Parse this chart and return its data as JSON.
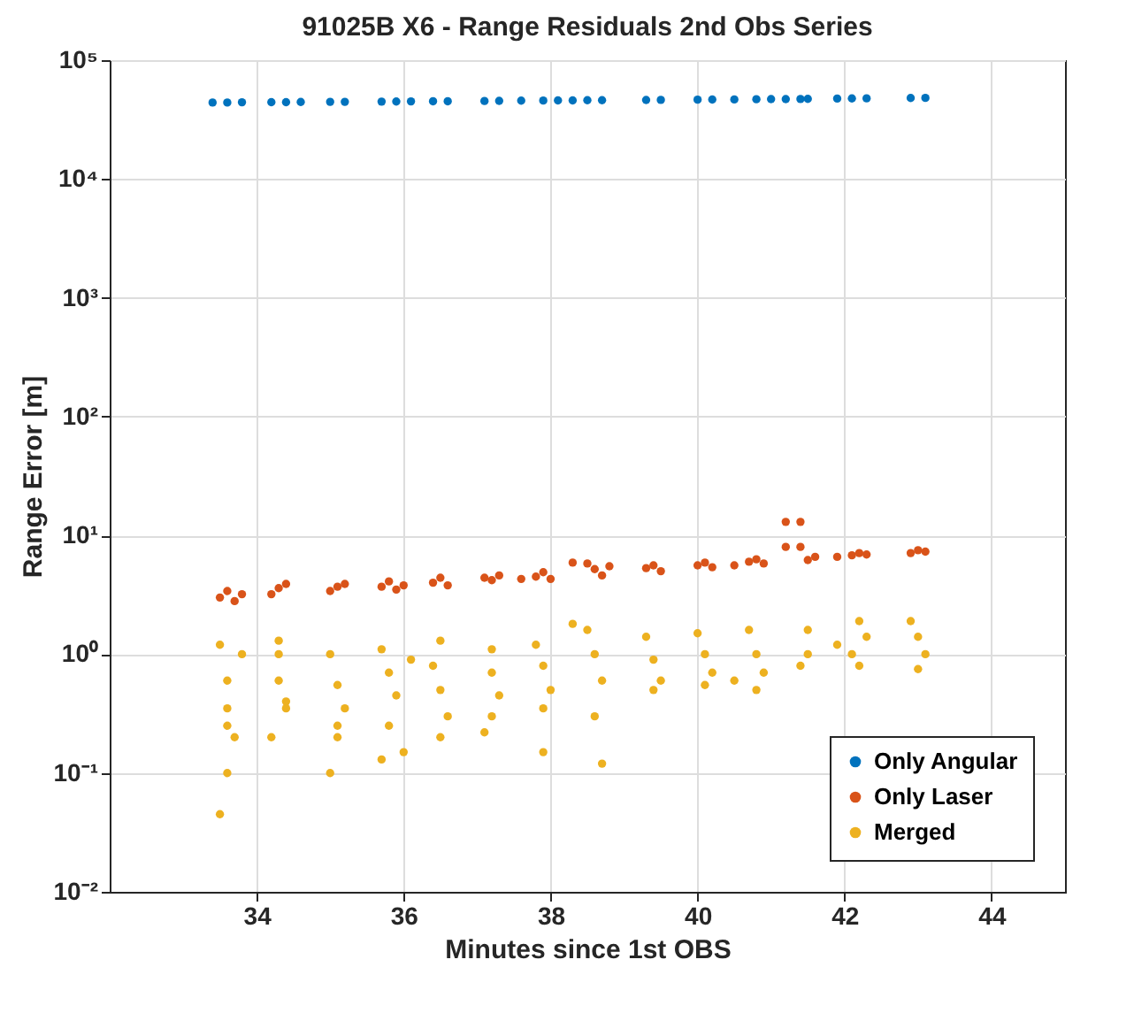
{
  "chart_data": {
    "type": "scatter",
    "title": "91025B X6 - Range Residuals 2nd Obs Series",
    "xlabel": "Minutes since 1st OBS",
    "ylabel": "Range Error [m]",
    "log": "y",
    "grid": true,
    "legend": "bottom right",
    "marker": "circle",
    "xlim": [
      32,
      45
    ],
    "xticks": [
      34,
      36,
      38,
      40,
      42,
      44
    ],
    "ylim": [
      0.01,
      100000
    ],
    "yticks": [
      {
        "value": 0.01,
        "label": "10⁻²"
      },
      {
        "value": 0.1,
        "label": "10⁻¹"
      },
      {
        "value": 1,
        "label": "10⁰"
      },
      {
        "value": 10,
        "label": "10¹"
      },
      {
        "value": 100,
        "label": "10²"
      },
      {
        "value": 1000,
        "label": "10³"
      },
      {
        "value": 10000,
        "label": "10⁴"
      },
      {
        "value": 100000,
        "label": "10⁵"
      }
    ],
    "series": [
      {
        "name": "Only Angular",
        "color": "#0072bd",
        "x": [
          33.4,
          33.6,
          33.8,
          34.2,
          34.4,
          34.6,
          35.0,
          35.2,
          35.7,
          35.9,
          36.1,
          36.4,
          36.6,
          37.1,
          37.3,
          37.6,
          37.9,
          38.1,
          38.3,
          38.5,
          38.7,
          39.3,
          39.5,
          40.0,
          40.2,
          40.5,
          40.8,
          41.0,
          41.2,
          41.4,
          41.5,
          41.9,
          42.1,
          42.3,
          42.9,
          43.1
        ],
        "values": [
          44000,
          44000,
          44200,
          44300,
          44300,
          44500,
          44600,
          44600,
          44800,
          44900,
          45000,
          45100,
          45100,
          45300,
          45400,
          45600,
          45700,
          45800,
          45800,
          46000,
          46000,
          46200,
          46300,
          46500,
          46600,
          46700,
          46900,
          47000,
          47000,
          47100,
          47200,
          47500,
          47600,
          47700,
          48000,
          48100
        ]
      },
      {
        "name": "Only Laser",
        "color": "#d95319",
        "x": [
          33.5,
          33.6,
          33.7,
          33.8,
          34.2,
          34.3,
          34.4,
          35.0,
          35.1,
          35.2,
          35.7,
          35.8,
          35.9,
          36.0,
          36.4,
          36.5,
          36.6,
          37.1,
          37.2,
          37.3,
          37.6,
          37.8,
          37.9,
          38.0,
          38.3,
          38.5,
          38.6,
          38.7,
          38.8,
          39.3,
          39.4,
          39.5,
          40.0,
          40.1,
          40.2,
          40.5,
          40.7,
          40.8,
          40.9,
          41.2,
          41.4,
          41.2,
          41.4,
          41.5,
          41.6,
          41.9,
          42.1,
          42.2,
          42.3,
          42.9,
          43.0,
          43.1
        ],
        "values": [
          3.0,
          3.4,
          2.8,
          3.2,
          3.2,
          3.6,
          3.9,
          3.4,
          3.7,
          3.9,
          3.7,
          4.1,
          3.5,
          3.8,
          4.0,
          4.4,
          3.8,
          4.4,
          4.2,
          4.6,
          4.3,
          4.5,
          4.9,
          4.3,
          5.9,
          5.8,
          5.2,
          4.6,
          5.5,
          5.3,
          5.6,
          5.0,
          5.6,
          5.9,
          5.4,
          5.6,
          6.0,
          6.3,
          5.8,
          13,
          13,
          8,
          8,
          6.2,
          6.6,
          6.6,
          6.8,
          7.1,
          6.9,
          7.1,
          7.5,
          7.3
        ]
      },
      {
        "name": "Merged",
        "color": "#edb120",
        "x": [
          33.5,
          33.6,
          33.6,
          33.7,
          33.6,
          33.5,
          33.6,
          33.8,
          34.3,
          34.3,
          34.4,
          34.2,
          34.3,
          34.4,
          35.0,
          35.1,
          35.2,
          35.1,
          35.0,
          35.1,
          35.7,
          35.8,
          35.9,
          35.8,
          35.7,
          36.0,
          36.1,
          36.5,
          36.4,
          36.5,
          36.6,
          36.5,
          37.2,
          37.2,
          37.3,
          37.1,
          37.2,
          37.8,
          37.9,
          38.0,
          37.9,
          37.9,
          38.3,
          38.5,
          38.6,
          38.7,
          38.6,
          38.7,
          39.3,
          39.4,
          39.5,
          39.4,
          40.0,
          40.1,
          40.2,
          40.1,
          40.5,
          40.7,
          40.8,
          40.9,
          40.8,
          41.5,
          41.5,
          41.4,
          41.9,
          42.2,
          42.3,
          42.1,
          42.2,
          42.9,
          43.0,
          43.1,
          43.0
        ],
        "values": [
          1.2,
          0.6,
          0.35,
          0.2,
          0.1,
          0.045,
          0.25,
          1.0,
          1.3,
          0.6,
          0.35,
          0.2,
          1.0,
          0.4,
          1.0,
          0.55,
          0.35,
          0.2,
          0.1,
          0.25,
          1.1,
          0.7,
          0.45,
          0.25,
          0.13,
          0.15,
          0.9,
          1.3,
          0.8,
          0.5,
          0.3,
          0.2,
          1.1,
          0.7,
          0.45,
          0.22,
          0.3,
          1.2,
          0.8,
          0.5,
          0.35,
          0.15,
          1.8,
          1.6,
          1.0,
          0.6,
          0.3,
          0.12,
          1.4,
          0.9,
          0.6,
          0.5,
          1.5,
          1.0,
          0.7,
          0.55,
          0.6,
          1.6,
          1.0,
          0.7,
          0.5,
          1.6,
          1.0,
          0.8,
          1.2,
          1.9,
          1.4,
          1.0,
          0.8,
          1.9,
          1.4,
          1.0,
          0.75
        ]
      }
    ]
  }
}
